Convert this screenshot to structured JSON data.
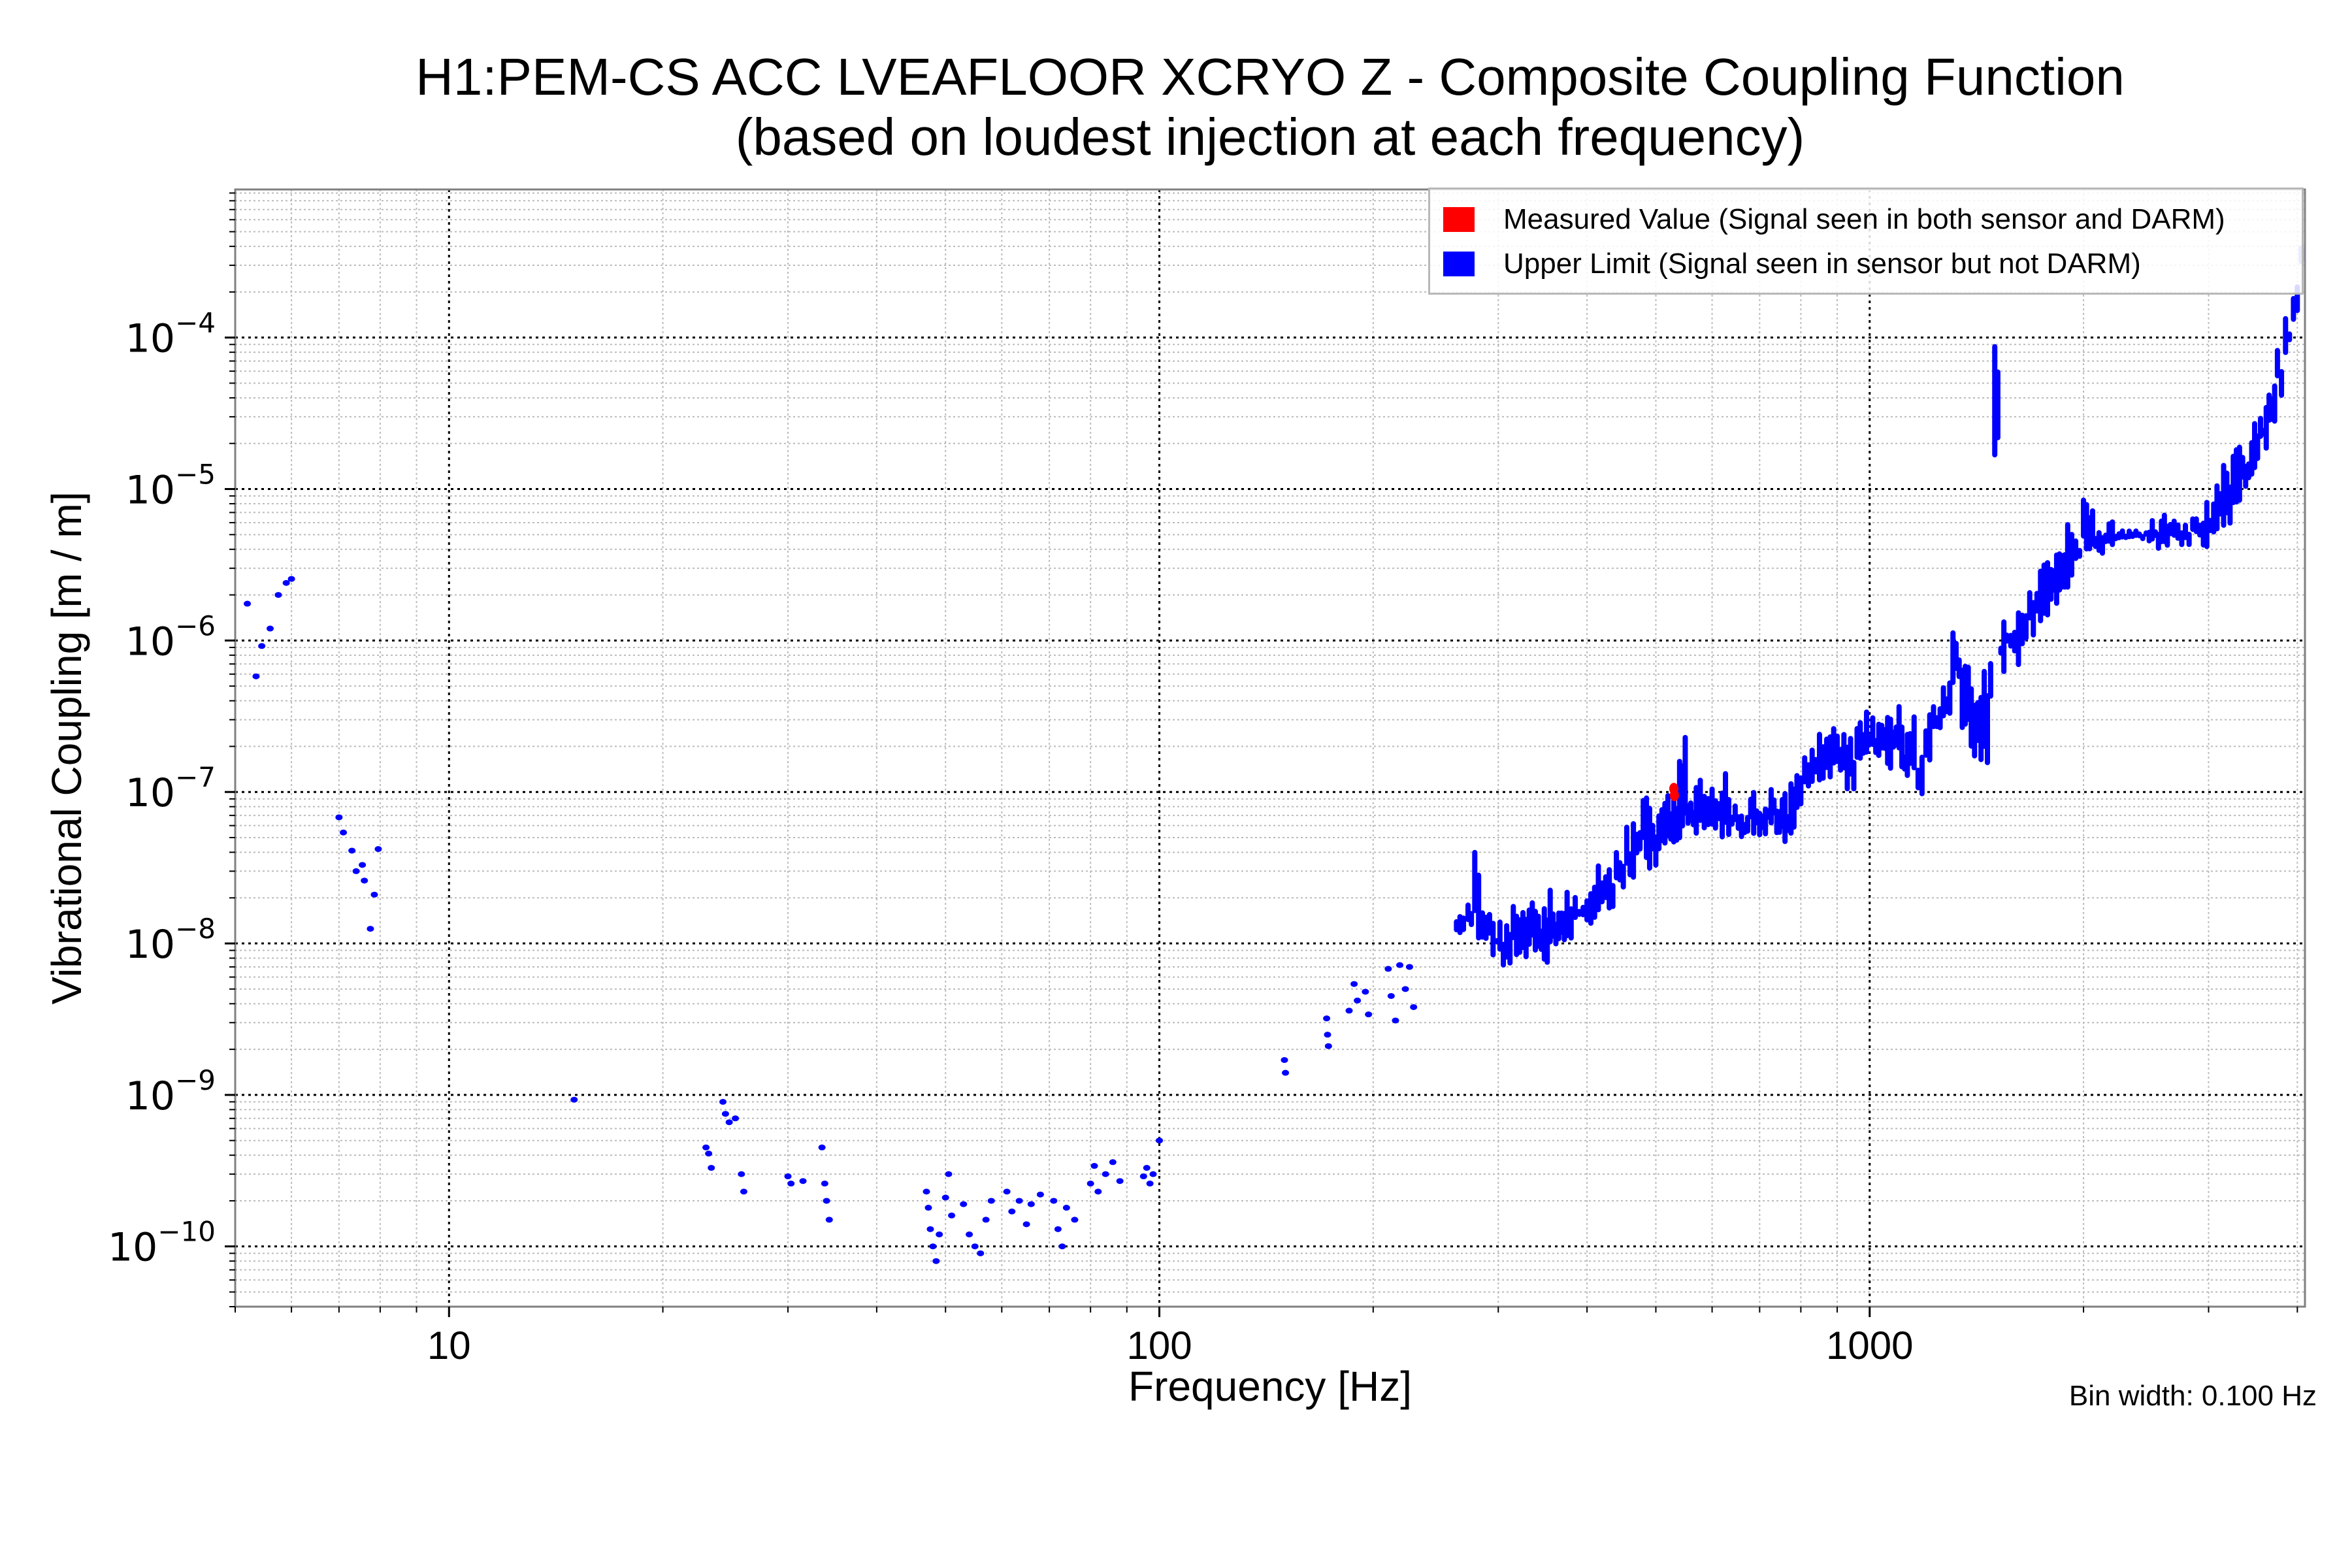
{
  "chart_data": {
    "type": "scatter",
    "title": "H1:PEM-CS ACC LVEAFLOOR XCRYO Z - Composite Coupling Function",
    "subtitle": "(based on loudest injection at each frequency)",
    "xlabel": "Frequency [Hz]",
    "ylabel": "Vibrational Coupling [m / m]",
    "xscale": "log",
    "yscale": "log",
    "xlim": [
      5,
      4100
    ],
    "ylim": [
      4e-11,
      0.00095
    ],
    "grid": true,
    "legend_position": "top-right",
    "annotation": "Bin width: 0.100 Hz",
    "xticks": [
      {
        "value": 10,
        "label": "10"
      },
      {
        "value": 100,
        "label": "100"
      },
      {
        "value": 1000,
        "label": "1000"
      }
    ],
    "yticks": [
      {
        "value": 0.0001,
        "base": "10",
        "exp": "−4"
      },
      {
        "value": 1e-05,
        "base": "10",
        "exp": "−5"
      },
      {
        "value": 1e-06,
        "base": "10",
        "exp": "−6"
      },
      {
        "value": 1e-07,
        "base": "10",
        "exp": "−7"
      },
      {
        "value": 1e-08,
        "base": "10",
        "exp": "−8"
      },
      {
        "value": 1e-09,
        "base": "10",
        "exp": "−9"
      },
      {
        "value": 1e-10,
        "base": "10",
        "exp": "−10"
      }
    ],
    "series": [
      {
        "name": "Measured Value (Signal seen in both sensor and DARM)",
        "color": "#ff0000",
        "points": [
          [
            530,
            1.05e-07
          ],
          [
            531,
            9.5e-08
          ]
        ]
      },
      {
        "name": "Upper Limit (Signal seen in sensor but not DARM)",
        "color": "#0000ff",
        "points": [
          [
            5.2,
            1.75e-06
          ],
          [
            5.35,
            5.8e-07
          ],
          [
            5.45,
            9.2e-07
          ],
          [
            5.6,
            1.2e-06
          ],
          [
            5.75,
            2e-06
          ],
          [
            5.9,
            2.4e-06
          ],
          [
            6.0,
            2.55e-06
          ],
          [
            7.0,
            6.8e-08
          ],
          [
            7.1,
            5.4e-08
          ],
          [
            7.3,
            4.1e-08
          ],
          [
            7.4,
            3e-08
          ],
          [
            7.55,
            3.3e-08
          ],
          [
            7.6,
            2.6e-08
          ],
          [
            7.75,
            1.25e-08
          ],
          [
            7.85,
            2.1e-08
          ],
          [
            7.95,
            4.2e-08
          ],
          [
            15.0,
            9.3e-10
          ],
          [
            23.0,
            4.5e-10
          ],
          [
            23.2,
            4.1e-10
          ],
          [
            23.4,
            3.3e-10
          ],
          [
            24.3,
            9e-10
          ],
          [
            24.5,
            7.5e-10
          ],
          [
            24.8,
            6.6e-10
          ],
          [
            25.3,
            7e-10
          ],
          [
            25.8,
            3e-10
          ],
          [
            26.0,
            2.3e-10
          ],
          [
            30.0,
            2.9e-10
          ],
          [
            30.3,
            2.6e-10
          ],
          [
            31.5,
            2.7e-10
          ],
          [
            33.5,
            4.5e-10
          ],
          [
            33.8,
            2.6e-10
          ],
          [
            34.0,
            2e-10
          ],
          [
            34.3,
            1.5e-10
          ],
          [
            47.0,
            2.3e-10
          ],
          [
            47.3,
            1.8e-10
          ],
          [
            47.6,
            1.3e-10
          ],
          [
            48.0,
            1e-10
          ],
          [
            48.5,
            8e-11
          ],
          [
            49.0,
            1.2e-10
          ],
          [
            50.0,
            2.1e-10
          ],
          [
            50.5,
            3e-10
          ],
          [
            51.0,
            1.6e-10
          ],
          [
            53.0,
            1.9e-10
          ],
          [
            54.0,
            1.2e-10
          ],
          [
            55.0,
            1e-10
          ],
          [
            56.0,
            9e-11
          ],
          [
            57.0,
            1.5e-10
          ],
          [
            58.0,
            2e-10
          ],
          [
            61.0,
            2.3e-10
          ],
          [
            62.0,
            1.7e-10
          ],
          [
            63.5,
            2e-10
          ],
          [
            65.0,
            1.4e-10
          ],
          [
            66.0,
            1.9e-10
          ],
          [
            68.0,
            2.2e-10
          ],
          [
            71.0,
            2e-10
          ],
          [
            72.0,
            1.3e-10
          ],
          [
            73.0,
            1e-10
          ],
          [
            74.0,
            1.8e-10
          ],
          [
            76.0,
            1.5e-10
          ],
          [
            80.0,
            2.6e-10
          ],
          [
            81.0,
            3.4e-10
          ],
          [
            82.0,
            2.3e-10
          ],
          [
            84.0,
            3e-10
          ],
          [
            86.0,
            3.6e-10
          ],
          [
            88.0,
            2.7e-10
          ],
          [
            95.0,
            2.9e-10
          ],
          [
            96.0,
            3.3e-10
          ],
          [
            97.0,
            2.6e-10
          ],
          [
            98.0,
            3e-10
          ],
          [
            100.0,
            5e-10
          ],
          [
            150.0,
            1.7e-09
          ],
          [
            150.5,
            1.4e-09
          ],
          [
            172.0,
            3.2e-09
          ],
          [
            172.5,
            2.5e-09
          ],
          [
            173.0,
            2.1e-09
          ],
          [
            185.0,
            3.6e-09
          ],
          [
            188.0,
            5.4e-09
          ],
          [
            190.0,
            4.2e-09
          ],
          [
            195.0,
            4.8e-09
          ],
          [
            197.0,
            3.4e-09
          ],
          [
            210.0,
            6.8e-09
          ],
          [
            212.0,
            4.5e-09
          ],
          [
            215.0,
            3.1e-09
          ],
          [
            218.0,
            7.2e-09
          ],
          [
            222.0,
            5e-09
          ],
          [
            225.0,
            7e-09
          ],
          [
            228.0,
            3.8e-09
          ]
        ],
        "bands": [
          [
            262,
            1.1e-08,
            1.6e-08
          ],
          [
            268,
            1.1e-08,
            1.7e-08
          ],
          [
            272,
            1.2e-08,
            1.9e-08
          ],
          [
            278,
            1e-08,
            5.4e-08
          ],
          [
            285,
            1e-08,
            2e-08
          ],
          [
            295,
            8e-09,
            1.5e-08
          ],
          [
            305,
            6.5e-09,
            1.7e-08
          ],
          [
            315,
            7.5e-09,
            2e-08
          ],
          [
            325,
            7e-09,
            1.8e-08
          ],
          [
            335,
            8e-09,
            2.2e-08
          ],
          [
            345,
            7e-09,
            1.9e-08
          ],
          [
            355,
            8.5e-09,
            2.4e-08
          ],
          [
            365,
            9e-09,
            2e-08
          ],
          [
            375,
            1e-08,
            2.6e-08
          ],
          [
            385,
            1.2e-08,
            2.3e-08
          ],
          [
            395,
            1.1e-08,
            3e-08
          ],
          [
            405,
            1.3e-08,
            2.8e-08
          ],
          [
            415,
            1.4e-08,
            3.8e-08
          ],
          [
            425,
            1.5e-08,
            3.2e-08
          ],
          [
            440,
            2e-08,
            4.3e-08
          ],
          [
            455,
            2.5e-08,
            6.5e-08
          ],
          [
            470,
            3e-08,
            8e-08
          ],
          [
            480,
            3.5e-08,
            1.05e-07
          ],
          [
            490,
            3e-08,
            8.5e-08
          ],
          [
            505,
            4e-08,
            9e-08
          ],
          [
            520,
            4.5e-08,
            1.1e-07
          ],
          [
            540,
            4.5e-08,
            2.4e-07
          ],
          [
            555,
            5e-08,
            1e-07
          ],
          [
            570,
            4.5e-08,
            1.3e-07
          ],
          [
            585,
            5.5e-08,
            1e-07
          ],
          [
            600,
            5e-08,
            1.1e-07
          ],
          [
            620,
            4e-08,
            1.5e-07
          ],
          [
            640,
            5e-08,
            1e-07
          ],
          [
            660,
            4e-08,
            9e-08
          ],
          [
            680,
            5e-08,
            1.3e-07
          ],
          [
            700,
            4.5e-08,
            1e-07
          ],
          [
            720,
            5.5e-08,
            1.1e-07
          ],
          [
            740,
            5e-08,
            1e-07
          ],
          [
            760,
            4.5e-08,
            1.2e-07
          ],
          [
            790,
            6e-08,
            1.5e-07
          ],
          [
            810,
            1e-07,
            2.3e-07
          ],
          [
            840,
            1.1e-07,
            2.6e-07
          ],
          [
            870,
            1.2e-07,
            2.8e-07
          ],
          [
            900,
            1.3e-07,
            3e-07
          ],
          [
            930,
            1e-07,
            2.5e-07
          ],
          [
            960,
            1.5e-07,
            3.5e-07
          ],
          [
            990,
            1.4e-07,
            4e-07
          ],
          [
            1020,
            1.6e-07,
            3e-07
          ],
          [
            1050,
            1.3e-07,
            3.8e-07
          ],
          [
            1080,
            1.5e-07,
            4.5e-07
          ],
          [
            1110,
            1.1e-07,
            3e-07
          ],
          [
            1140,
            1.2e-07,
            3.5e-07
          ],
          [
            1170,
            7.5e-08,
            2.5e-07
          ],
          [
            1200,
            1.5e-07,
            3.5e-07
          ],
          [
            1230,
            2e-07,
            4.5e-07
          ],
          [
            1270,
            3e-07,
            6e-07
          ],
          [
            1310,
            4.5e-07,
            1.2e-06
          ],
          [
            1350,
            2.5e-07,
            1e-06
          ],
          [
            1390,
            1.5e-07,
            6e-07
          ],
          [
            1420,
            1.5e-07,
            6.5e-07
          ],
          [
            1480,
            4e-07,
            1e-06
          ],
          [
            1500,
            1.3e-05,
            0.0001
          ],
          [
            1530,
            6e-07,
            1.5e-06
          ],
          [
            1560,
            7e-07,
            1.7e-06
          ],
          [
            1600,
            6e-07,
            1.6e-06
          ],
          [
            1640,
            9e-07,
            2e-06
          ],
          [
            1680,
            1e-06,
            2.5e-06
          ],
          [
            1720,
            1.2e-06,
            3e-06
          ],
          [
            1760,
            1.3e-06,
            3.5e-06
          ],
          [
            1800,
            1.5e-06,
            4e-06
          ],
          [
            1850,
            2e-06,
            4e-06
          ],
          [
            1900,
            1.8e-06,
            6.5e-06
          ],
          [
            1950,
            3e-06,
            5.5e-06
          ],
          [
            2000,
            3.5e-06,
            1.1e-05
          ],
          [
            2080,
            3.5e-06,
            5.5e-06
          ],
          [
            2150,
            3.8e-06,
            6.5e-06
          ],
          [
            2220,
            4.5e-06,
            5.5e-06
          ],
          [
            2450,
            4.2e-06,
            7e-06
          ],
          [
            2550,
            3.5e-06,
            7.5e-06
          ],
          [
            2650,
            4.5e-06,
            6.5e-06
          ],
          [
            2750,
            4e-06,
            6e-06
          ],
          [
            2850,
            4.5e-06,
            7e-06
          ],
          [
            2950,
            4e-06,
            9e-06
          ],
          [
            3050,
            5e-06,
            1.1e-05
          ],
          [
            3150,
            5.5e-06,
            1.5e-05
          ],
          [
            3250,
            6.5e-06,
            2e-05
          ],
          [
            3350,
            9e-06,
            2.5e-05
          ],
          [
            3450,
            1.2e-05,
            3e-05
          ],
          [
            3550,
            1.7e-05,
            4e-05
          ],
          [
            3650,
            2.5e-05,
            6e-05
          ],
          [
            3750,
            4e-05,
            0.0001
          ],
          [
            3850,
            7e-05,
            0.00016
          ],
          [
            3950,
            0.00012,
            0.00026
          ],
          [
            4050,
            0.00025,
            0.0005
          ]
        ]
      }
    ]
  }
}
